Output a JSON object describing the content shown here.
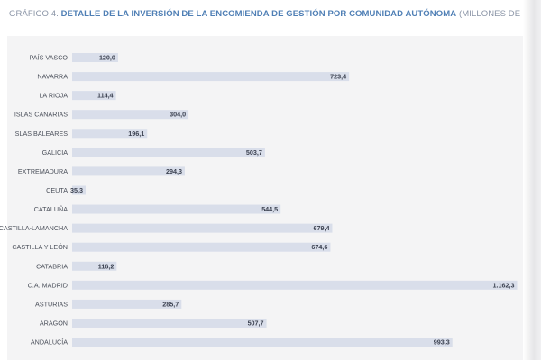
{
  "header": {
    "prefix": "GRÁFICO 4.",
    "title": "DETALLE DE LA INVERSIÓN DE LA ENCOMIENDA DE GESTIÓN POR COMUNIDAD AUTÓNOMA",
    "unit": "(MILLONES DE EUROS)"
  },
  "colors": {
    "bar": "#d9deea",
    "title_accent": "#4f7fb5",
    "panel": "#f4f4f5"
  },
  "chart_data": {
    "type": "bar",
    "orientation": "horizontal",
    "title": "DETALLE DE LA INVERSIÓN DE LA ENCOMIENDA DE GESTIÓN POR COMUNIDAD AUTÓNOMA",
    "xlabel": "",
    "ylabel": "",
    "xlim": [
      0,
      1200
    ],
    "grid": false,
    "categories": [
      "PAÍS VASCO",
      "NAVARRA",
      "LA RIOJA",
      "ISLAS CANARIAS",
      "ISLAS BALEARES",
      "GALICIA",
      "EXTREMADURA",
      "CEUTA",
      "CATALUÑA",
      "CASTILLA-LAMANCHA",
      "CASTILLA Y LEÓN",
      "CATABRIA",
      "C.A. MADRID",
      "ASTURIAS",
      "ARAGÓN",
      "ANDALUCÍA"
    ],
    "values": [
      120.0,
      723.4,
      114.4,
      304.0,
      196.1,
      503.7,
      294.3,
      35.3,
      544.5,
      679.4,
      674.6,
      116.2,
      1162.3,
      285.7,
      507.7,
      993.3
    ],
    "value_labels": [
      "120,0",
      "723,4",
      "114,4",
      "304,0",
      "196,1",
      "503,7",
      "294,3",
      "35,3",
      "544,5",
      "679,4",
      "674,6",
      "116,2",
      "1.162,3",
      "285,7",
      "507,7",
      "993,3"
    ]
  }
}
